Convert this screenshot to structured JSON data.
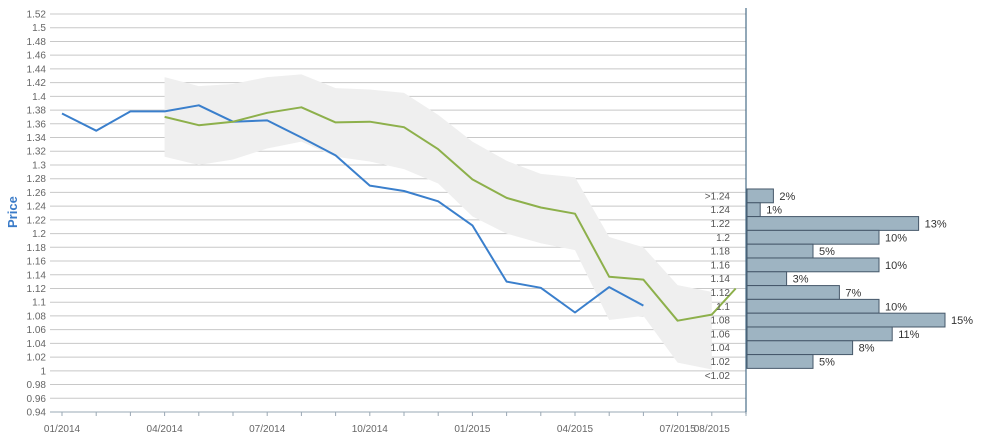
{
  "chart_data": {
    "type": "line",
    "title": "",
    "xlabel": "",
    "ylabel": "Price",
    "ylim": [
      0.94,
      1.52
    ],
    "yticks": [
      "0.94",
      "0.96",
      "0.98",
      "1",
      "1.02",
      "1.04",
      "1.06",
      "1.08",
      "1.1",
      "1.12",
      "1.14",
      "1.16",
      "1.18",
      "1.2",
      "1.22",
      "1.24",
      "1.26",
      "1.28",
      "1.3",
      "1.32",
      "1.34",
      "1.36",
      "1.38",
      "1.4",
      "1.42",
      "1.44",
      "1.46",
      "1.48",
      "1.5",
      "1.52"
    ],
    "xticks": [
      "01/2014",
      "04/2014",
      "07/2014",
      "10/2014",
      "01/2015",
      "04/2015",
      "07/2015",
      "08/2015"
    ],
    "colors": {
      "actual": "#3a7fcc",
      "forecast": "#8db04b",
      "band": "#efefef",
      "bar_fill": "#9eb4c2",
      "bar_stroke": "#46586a",
      "grid": "#c8c8c8",
      "axis": "#4a6e88"
    },
    "series": [
      {
        "role": "actual",
        "x": [
          "01/2014",
          "02/2014",
          "03/2014",
          "04/2014",
          "05/2014",
          "06/2014",
          "07/2014",
          "08/2014",
          "09/2014",
          "10/2014",
          "11/2014",
          "12/2014",
          "01/2015",
          "02/2015",
          "03/2015",
          "04/2015",
          "05/2015",
          "06/2015"
        ],
        "values": [
          1.375,
          1.35,
          1.378,
          1.378,
          1.387,
          1.363,
          1.365,
          1.34,
          1.314,
          1.27,
          1.262,
          1.247,
          1.212,
          1.13,
          1.121,
          1.085,
          1.122,
          1.095
        ]
      },
      {
        "role": "forecast",
        "x": [
          "04/2014",
          "05/2014",
          "06/2014",
          "07/2014",
          "08/2014",
          "09/2014",
          "10/2014",
          "11/2014",
          "12/2014",
          "01/2015",
          "02/2015",
          "03/2015",
          "04/2015",
          "05/2015",
          "06/2015",
          "07/2015",
          "08/2015",
          "mid-08/2015"
        ],
        "values": [
          1.37,
          1.358,
          1.363,
          1.376,
          1.384,
          1.362,
          1.363,
          1.355,
          1.323,
          1.279,
          1.252,
          1.238,
          1.229,
          1.137,
          1.133,
          1.073,
          1.082,
          1.12
        ]
      }
    ],
    "band": {
      "x": [
        "04/2014",
        "05/2014",
        "06/2014",
        "07/2014",
        "08/2014",
        "09/2014",
        "10/2014",
        "11/2014",
        "12/2014",
        "01/2015",
        "02/2015",
        "03/2015",
        "04/2015",
        "05/2015",
        "06/2015",
        "07/2015",
        "08/2015"
      ],
      "upper": [
        1.428,
        1.415,
        1.418,
        1.428,
        1.432,
        1.412,
        1.41,
        1.405,
        1.373,
        1.334,
        1.306,
        1.287,
        1.282,
        1.195,
        1.18,
        1.125,
        1.115
      ],
      "lower": [
        1.312,
        1.3,
        1.308,
        1.324,
        1.334,
        1.312,
        1.305,
        1.294,
        1.273,
        1.225,
        1.2,
        1.186,
        1.176,
        1.074,
        1.08,
        1.012,
        1.002
      ]
    },
    "distribution": {
      "type": "bar",
      "orientation": "horizontal",
      "categories": [
        ">1.24",
        "1.24",
        "1.22",
        "1.2",
        "1.18",
        "1.16",
        "1.14",
        "1.12",
        "1.1",
        "1.08",
        "1.06",
        "1.04",
        "1.02",
        "<1.02"
      ],
      "values": [
        2,
        1,
        13,
        10,
        5,
        10,
        3,
        7,
        10,
        15,
        11,
        8,
        5,
        null
      ],
      "labels": [
        "2%",
        "1%",
        "13%",
        "10%",
        "5%",
        "10%",
        "3%",
        "7%",
        "10%",
        "15%",
        "11%",
        "8%",
        "5%",
        ""
      ]
    }
  }
}
